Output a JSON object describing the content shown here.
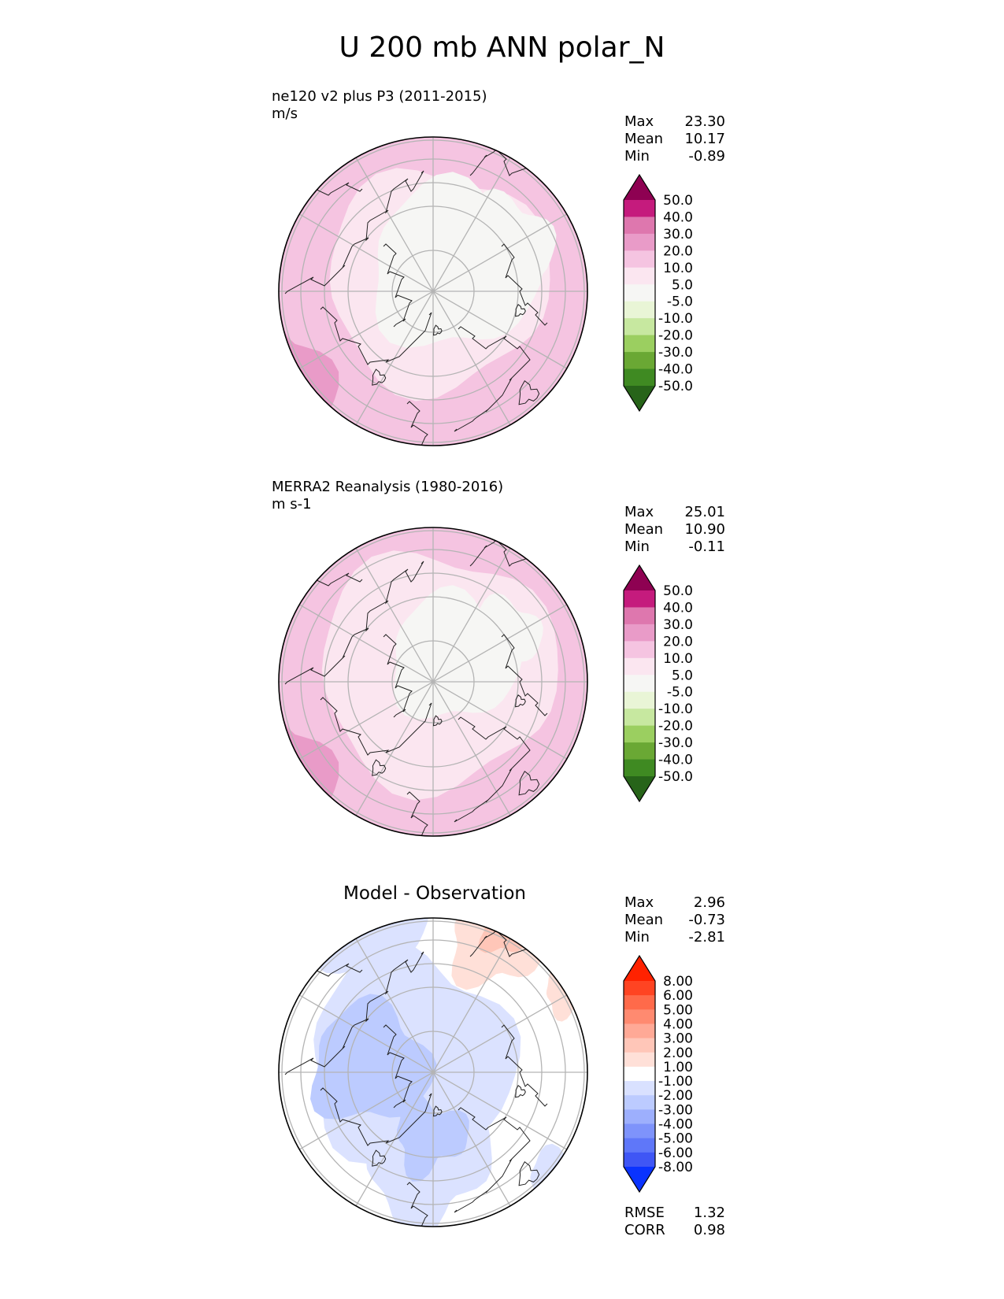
{
  "chart_data": {
    "type": "heatmap",
    "title": "U 200 mb ANN polar_N",
    "panels": [
      {
        "id": "test",
        "name_line": "ne120 v2 plus P3 (2011-2015)",
        "units_line": "m/s",
        "stats": [
          {
            "label": "Max",
            "value": "23.30"
          },
          {
            "label": "Mean",
            "value": "10.17"
          },
          {
            "label": "Min",
            "value": "-0.89"
          }
        ],
        "colorbar": {
          "ticks": [
            "50.0",
            "40.0",
            "30.0",
            "20.0",
            "10.0",
            "5.0",
            "-5.0",
            "-10.0",
            "-20.0",
            "-30.0",
            "-40.0",
            "-50.0"
          ],
          "colors": [
            "#8e0152",
            "#c51b7d",
            "#de77ae",
            "#e99bc8",
            "#f5c4e1",
            "#fbe6f0",
            "#f6f6f4",
            "#e9f5d6",
            "#c7e8a0",
            "#9bcf60",
            "#6aa834",
            "#3f8a22",
            "#276419"
          ]
        }
      },
      {
        "id": "ref",
        "name_line": "MERRA2 Reanalysis (1980-2016)",
        "units_line": "m s-1",
        "stats": [
          {
            "label": "Max",
            "value": "25.01"
          },
          {
            "label": "Mean",
            "value": "10.90"
          },
          {
            "label": "Min",
            "value": "-0.11"
          }
        ],
        "colorbar": {
          "ticks": [
            "50.0",
            "40.0",
            "30.0",
            "20.0",
            "10.0",
            "5.0",
            "-5.0",
            "-10.0",
            "-20.0",
            "-30.0",
            "-40.0",
            "-50.0"
          ],
          "colors": [
            "#8e0152",
            "#c51b7d",
            "#de77ae",
            "#e99bc8",
            "#f5c4e1",
            "#fbe6f0",
            "#f6f6f4",
            "#e9f5d6",
            "#c7e8a0",
            "#9bcf60",
            "#6aa834",
            "#3f8a22",
            "#276419"
          ]
        }
      },
      {
        "id": "diff",
        "title": "Model - Observation",
        "stats": [
          {
            "label": "Max",
            "value": "2.96"
          },
          {
            "label": "Mean",
            "value": "-0.73"
          },
          {
            "label": "Min",
            "value": "-2.81"
          }
        ],
        "colorbar": {
          "ticks": [
            "8.00",
            "6.00",
            "5.00",
            "4.00",
            "3.00",
            "2.00",
            "1.00",
            "-1.00",
            "-2.00",
            "-3.00",
            "-4.00",
            "-5.00",
            "-6.00",
            "-8.00"
          ],
          "colors": [
            "#ff2200",
            "#ff4422",
            "#ff6a4a",
            "#ff8a70",
            "#ffa996",
            "#ffc6b8",
            "#ffe0d8",
            "#ffffff",
            "#d9e1ff",
            "#bccbff",
            "#9daffd",
            "#7e93fb",
            "#5f77f9",
            "#3f56f5",
            "#0a33ff"
          ]
        },
        "metrics": [
          {
            "label": "RMSE",
            "value": "1.32"
          },
          {
            "label": "CORR",
            "value": "0.98"
          }
        ]
      }
    ]
  }
}
